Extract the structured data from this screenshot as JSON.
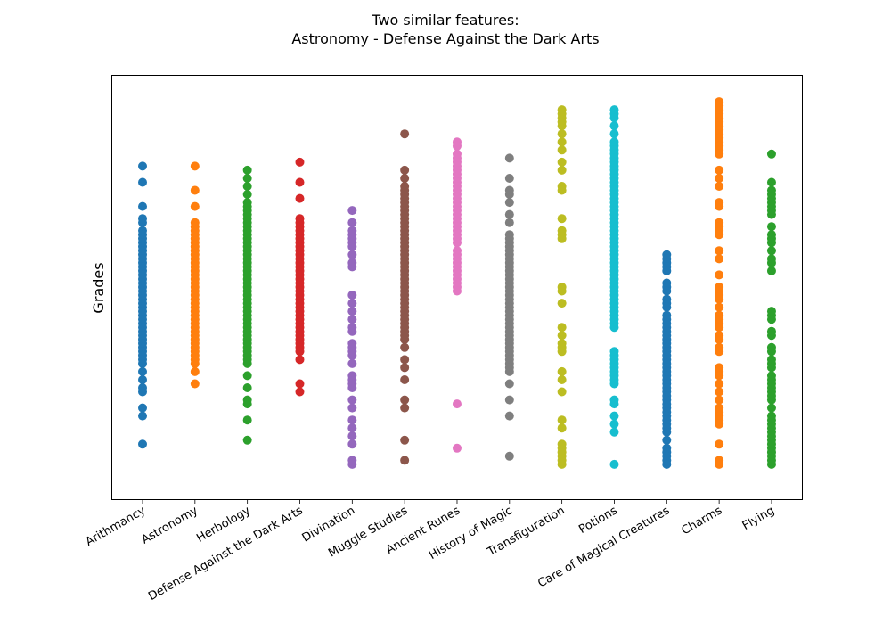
{
  "title_line1": "Two similar features:",
  "title_line2": "Astronomy - Defense Against the Dark Arts",
  "chart_data": {
    "type": "scatter",
    "title": "Two similar features:\nAstronomy - Defense Against the Dark Arts",
    "xlabel": "",
    "ylabel": "Grades",
    "y_ticks_shown": false,
    "grid": false,
    "legend": "none",
    "ylim": [
      0,
      100
    ],
    "categories": [
      "Arithmancy",
      "Astronomy",
      "Herbology",
      "Defense Against the Dark Arts",
      "Divination",
      "Muggle Studies",
      "Ancient Runes",
      "History of Magic",
      "Transfiguration",
      "Potions",
      "Care of Magical Creatures",
      "Charms",
      "Flying"
    ],
    "series": [
      {
        "category": "Arithmancy",
        "color": "#1f77b4",
        "values": [
          80,
          76,
          70,
          67,
          66,
          64,
          63,
          62,
          61,
          60,
          59,
          58,
          57,
          56,
          55,
          54,
          53,
          52,
          51,
          50,
          49,
          48,
          47,
          46,
          45,
          44,
          43,
          42,
          41,
          40,
          39,
          38,
          37,
          36,
          35,
          34,
          33,
          32,
          31,
          29,
          27,
          25,
          24,
          20,
          18,
          11
        ]
      },
      {
        "category": "Astronomy",
        "color": "#ff7f0e",
        "values": [
          80,
          74,
          70,
          66,
          65,
          64,
          63,
          62,
          61,
          60,
          59,
          58,
          57,
          56,
          55,
          54,
          53,
          52,
          51,
          50,
          49,
          48,
          47,
          46,
          45,
          44,
          43,
          42,
          41,
          40,
          39,
          38,
          37,
          36,
          35,
          34,
          33,
          32,
          31,
          29,
          26
        ]
      },
      {
        "category": "Herbology",
        "color": "#2ca02c",
        "values": [
          79,
          77,
          75,
          73,
          71,
          70,
          69,
          68,
          67,
          66,
          65,
          64,
          63,
          62,
          61,
          60,
          59,
          58,
          57,
          56,
          55,
          54,
          53,
          52,
          51,
          50,
          49,
          48,
          47,
          46,
          45,
          44,
          43,
          42,
          41,
          40,
          39,
          38,
          37,
          36,
          35,
          34,
          33,
          32,
          31,
          28,
          25,
          22,
          21,
          17,
          12
        ]
      },
      {
        "category": "Defense Against the Dark Arts",
        "color": "#d62728",
        "values": [
          81,
          76,
          72,
          67,
          66,
          65,
          64,
          63,
          62,
          61,
          60,
          59,
          58,
          57,
          56,
          55,
          54,
          53,
          52,
          51,
          50,
          49,
          48,
          47,
          46,
          45,
          44,
          43,
          42,
          41,
          40,
          39,
          38,
          37,
          36,
          35,
          34,
          32,
          26,
          24
        ]
      },
      {
        "category": "Divination",
        "color": "#9467bd",
        "values": [
          69,
          66,
          64,
          63,
          62,
          61,
          60,
          58,
          56,
          55,
          48,
          46,
          44,
          42,
          40,
          39,
          36,
          35,
          34,
          33,
          31,
          28,
          27,
          26,
          25,
          22,
          20,
          17,
          15,
          13,
          11,
          7,
          6
        ]
      },
      {
        "category": "Muggle Studies",
        "color": "#8c564b",
        "values": [
          88,
          79,
          77,
          75,
          74,
          73,
          72,
          71,
          70,
          69,
          68,
          67,
          66,
          65,
          64,
          63,
          62,
          61,
          60,
          59,
          58,
          57,
          56,
          55,
          54,
          53,
          52,
          51,
          50,
          49,
          48,
          47,
          46,
          45,
          44,
          43,
          42,
          41,
          40,
          39,
          38,
          37,
          35,
          32,
          30,
          27,
          22,
          20,
          12,
          7
        ]
      },
      {
        "category": "Ancient Runes",
        "color": "#e377c2",
        "values": [
          86,
          85,
          83,
          82,
          81,
          80,
          79,
          78,
          77,
          76,
          75,
          74,
          73,
          72,
          71,
          70,
          69,
          68,
          67,
          66,
          65,
          64,
          63,
          62,
          61,
          59,
          58,
          57,
          56,
          55,
          54,
          53,
          52,
          51,
          50,
          49,
          21,
          10
        ]
      },
      {
        "category": "History of Magic",
        "color": "#7f7f7f",
        "values": [
          82,
          77,
          74,
          73,
          71,
          68,
          66,
          63,
          62,
          61,
          60,
          59,
          58,
          57,
          56,
          55,
          54,
          53,
          52,
          51,
          50,
          49,
          48,
          47,
          46,
          45,
          44,
          43,
          42,
          41,
          40,
          39,
          38,
          37,
          36,
          35,
          34,
          33,
          32,
          31,
          30,
          29,
          26,
          22,
          18,
          8
        ]
      },
      {
        "category": "Transfiguration",
        "color": "#bcbd22",
        "values": [
          94,
          93,
          92,
          91,
          90,
          88,
          86,
          84,
          81,
          79,
          75,
          74,
          67,
          64,
          63,
          62,
          50,
          49,
          46,
          40,
          38,
          36,
          35,
          34,
          29,
          27,
          24,
          17,
          15,
          11,
          10,
          9,
          8,
          7,
          6
        ]
      },
      {
        "category": "Potions",
        "color": "#17becf",
        "values": [
          94,
          93,
          92,
          90,
          88,
          86,
          85,
          84,
          83,
          82,
          81,
          80,
          79,
          78,
          77,
          76,
          75,
          74,
          73,
          72,
          71,
          70,
          69,
          68,
          67,
          66,
          65,
          64,
          63,
          62,
          61,
          60,
          59,
          58,
          57,
          56,
          55,
          54,
          53,
          52,
          51,
          50,
          49,
          48,
          47,
          46,
          45,
          44,
          43,
          42,
          41,
          40,
          34,
          33,
          32,
          31,
          30,
          29,
          28,
          27,
          26,
          22,
          21,
          18,
          16,
          14,
          6
        ]
      },
      {
        "category": "Care of Magical Creatures",
        "color": "#1f77b4",
        "values": [
          58,
          57,
          56,
          55,
          54,
          51,
          50,
          49,
          47,
          46,
          45,
          43,
          42,
          41,
          40,
          39,
          38,
          37,
          36,
          35,
          34,
          33,
          32,
          31,
          30,
          29,
          28,
          27,
          26,
          25,
          24,
          23,
          22,
          21,
          20,
          19,
          18,
          17,
          16,
          15,
          14,
          12,
          10,
          9,
          8,
          7,
          6
        ]
      },
      {
        "category": "Charms",
        "color": "#ff7f0e",
        "values": [
          96,
          95,
          94,
          93,
          92,
          91,
          90,
          89,
          88,
          87,
          86,
          85,
          84,
          83,
          79,
          77,
          75,
          71,
          70,
          66,
          65,
          64,
          63,
          59,
          57,
          53,
          50,
          49,
          48,
          47,
          45,
          43,
          42,
          41,
          40,
          38,
          37,
          35,
          34,
          30,
          29,
          28,
          26,
          24,
          22,
          20,
          19,
          18,
          17,
          16,
          11,
          7,
          6
        ]
      },
      {
        "category": "Flying",
        "color": "#2ca02c",
        "values": [
          83,
          76,
          74,
          73,
          72,
          71,
          70,
          69,
          68,
          65,
          63,
          62,
          61,
          59,
          57,
          56,
          54,
          44,
          43,
          42,
          39,
          38,
          35,
          34,
          32,
          31,
          30,
          28,
          27,
          26,
          25,
          24,
          23,
          22,
          20,
          18,
          17,
          16,
          15,
          14,
          13,
          12,
          11,
          10,
          9,
          8,
          7,
          6
        ]
      }
    ]
  }
}
